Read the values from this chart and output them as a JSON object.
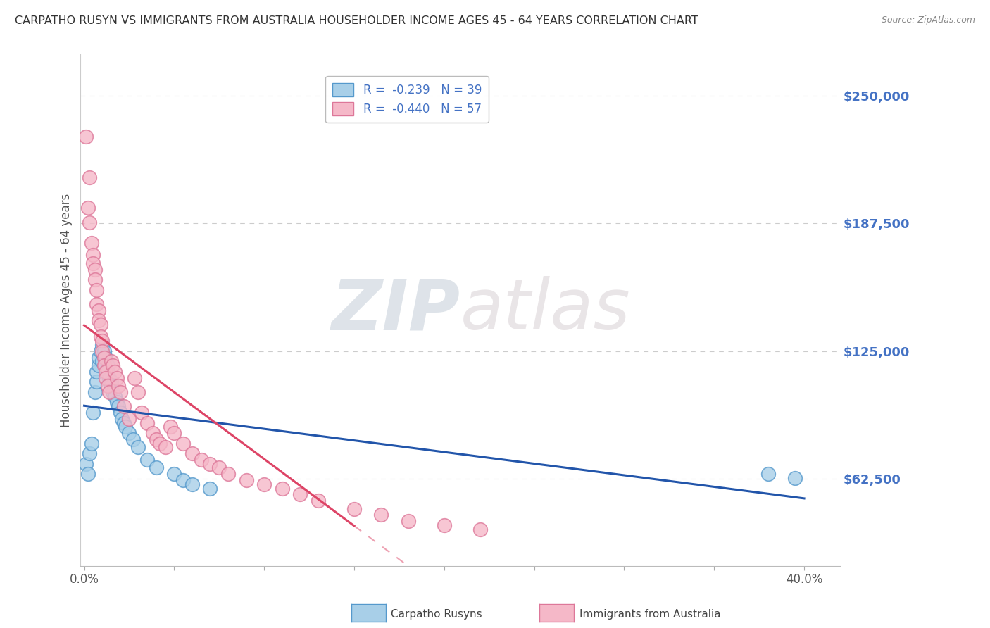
{
  "title": "CARPATHO RUSYN VS IMMIGRANTS FROM AUSTRALIA HOUSEHOLDER INCOME AGES 45 - 64 YEARS CORRELATION CHART",
  "source": "Source: ZipAtlas.com",
  "ylabel": "Householder Income Ages 45 - 64 years",
  "xlim": [
    -0.002,
    0.42
  ],
  "ylim": [
    20000,
    270000
  ],
  "yticks": [
    62500,
    125000,
    187500,
    250000
  ],
  "ytick_labels": [
    "$62,500",
    "$125,000",
    "$187,500",
    "$250,000"
  ],
  "xticks": [
    0.0,
    0.1,
    0.2,
    0.3,
    0.4
  ],
  "xtick_labels": [
    "0.0%",
    "",
    "",
    "",
    "40.0%"
  ],
  "watermark_zip": "ZIP",
  "watermark_atlas": "atlas",
  "line_color_blue": "#2255aa",
  "line_color_pink": "#dd4466",
  "background_color": "#ffffff",
  "grid_color": "#cccccc",
  "legend_R1": "R =  -0.239   N = 39",
  "legend_R2": "R =  -0.440   N = 57",
  "blue_x": [
    0.001,
    0.002,
    0.003,
    0.004,
    0.005,
    0.006,
    0.007,
    0.007,
    0.008,
    0.008,
    0.009,
    0.01,
    0.01,
    0.011,
    0.012,
    0.013,
    0.013,
    0.014,
    0.015,
    0.015,
    0.016,
    0.017,
    0.018,
    0.019,
    0.02,
    0.021,
    0.022,
    0.023,
    0.025,
    0.027,
    0.03,
    0.035,
    0.04,
    0.05,
    0.055,
    0.06,
    0.07,
    0.38,
    0.395
  ],
  "blue_y": [
    70000,
    65000,
    75000,
    80000,
    95000,
    105000,
    110000,
    115000,
    118000,
    122000,
    125000,
    120000,
    128000,
    125000,
    122000,
    118000,
    115000,
    112000,
    110000,
    108000,
    105000,
    103000,
    100000,
    98000,
    95000,
    92000,
    90000,
    88000,
    85000,
    82000,
    78000,
    72000,
    68000,
    65000,
    62000,
    60000,
    58000,
    65000,
    63000
  ],
  "pink_x": [
    0.001,
    0.002,
    0.003,
    0.003,
    0.004,
    0.005,
    0.005,
    0.006,
    0.006,
    0.007,
    0.007,
    0.008,
    0.008,
    0.009,
    0.009,
    0.01,
    0.01,
    0.011,
    0.011,
    0.012,
    0.012,
    0.013,
    0.014,
    0.015,
    0.016,
    0.017,
    0.018,
    0.019,
    0.02,
    0.022,
    0.025,
    0.028,
    0.03,
    0.032,
    0.035,
    0.038,
    0.04,
    0.042,
    0.045,
    0.048,
    0.05,
    0.055,
    0.06,
    0.065,
    0.07,
    0.075,
    0.08,
    0.09,
    0.1,
    0.11,
    0.12,
    0.13,
    0.15,
    0.165,
    0.18,
    0.2,
    0.22
  ],
  "pink_y": [
    230000,
    195000,
    210000,
    188000,
    178000,
    172000,
    168000,
    165000,
    160000,
    155000,
    148000,
    145000,
    140000,
    138000,
    132000,
    130000,
    125000,
    122000,
    118000,
    115000,
    112000,
    108000,
    105000,
    120000,
    118000,
    115000,
    112000,
    108000,
    105000,
    98000,
    92000,
    112000,
    105000,
    95000,
    90000,
    85000,
    82000,
    80000,
    78000,
    88000,
    85000,
    80000,
    75000,
    72000,
    70000,
    68000,
    65000,
    62000,
    60000,
    58000,
    55000,
    52000,
    48000,
    45000,
    42000,
    40000,
    38000
  ]
}
